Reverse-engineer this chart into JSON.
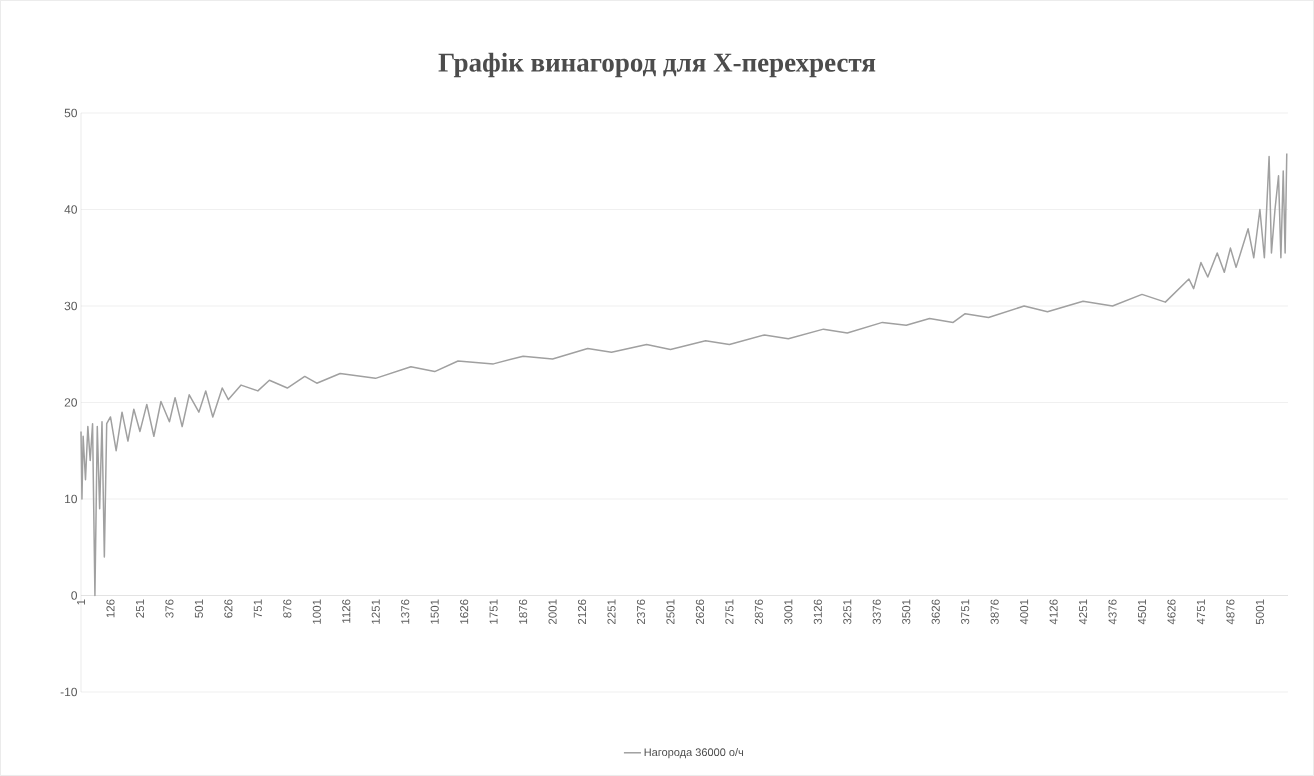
{
  "chart_data": {
    "type": "line",
    "title": "Графік винагород для Х-перехрестя",
    "x": [
      1,
      5,
      10,
      20,
      30,
      40,
      50,
      60,
      70,
      80,
      90,
      100,
      110,
      126,
      150,
      175,
      200,
      225,
      251,
      280,
      310,
      340,
      376,
      400,
      430,
      460,
      501,
      530,
      560,
      600,
      626,
      680,
      751,
      800,
      876,
      950,
      1001,
      1100,
      1250,
      1400,
      1501,
      1600,
      1750,
      1876,
      2001,
      2150,
      2251,
      2400,
      2501,
      2650,
      2751,
      2900,
      3001,
      3150,
      3251,
      3400,
      3501,
      3600,
      3700,
      3751,
      3850,
      4001,
      4100,
      4251,
      4376,
      4501,
      4600,
      4700,
      4720,
      4751,
      4780,
      4820,
      4850,
      4876,
      4900,
      4951,
      4975,
      5001,
      5020,
      5040,
      5050,
      5065,
      5080,
      5090,
      5100,
      5108,
      5115
    ],
    "series": [
      {
        "name": "Нагорода 36000 о/ч",
        "color": "#a0a0a0",
        "values": [
          17,
          10,
          16.5,
          12,
          17.5,
          14,
          17.8,
          0,
          17.5,
          9,
          18,
          4,
          17.8,
          18.5,
          15,
          19,
          16,
          19.3,
          17,
          19.8,
          16.5,
          20.1,
          18,
          20.5,
          17.5,
          20.8,
          19,
          21.2,
          18.5,
          21.5,
          20.3,
          21.8,
          21.2,
          22.3,
          21.5,
          22.7,
          22,
          23,
          22.5,
          23.7,
          23.2,
          24.3,
          24,
          24.8,
          24.5,
          25.6,
          25.2,
          26,
          25.5,
          26.4,
          26,
          27,
          26.6,
          27.6,
          27.2,
          28.3,
          28,
          28.7,
          28.3,
          29.2,
          28.8,
          30,
          29.4,
          30.5,
          30,
          31.2,
          30.4,
          32.8,
          31.8,
          34.5,
          33,
          35.5,
          33.5,
          36,
          34,
          38,
          35,
          40,
          35,
          45.5,
          35.5,
          40,
          43.5,
          35,
          44,
          35.5,
          45.8
        ]
      }
    ],
    "xlim": [
      1,
      5120
    ],
    "xticks": [
      1,
      126,
      251,
      376,
      501,
      626,
      751,
      876,
      1001,
      1126,
      1251,
      1376,
      1501,
      1626,
      1751,
      1876,
      2001,
      2126,
      2251,
      2376,
      2501,
      2626,
      2751,
      2876,
      3001,
      3126,
      3251,
      3376,
      3501,
      3626,
      3751,
      3876,
      4001,
      4126,
      4251,
      4376,
      4501,
      4626,
      4751,
      4876,
      5001
    ],
    "ylim": [
      -10,
      50
    ],
    "yticks": [
      -10,
      0,
      10,
      20,
      30,
      40,
      50
    ],
    "grid": "y",
    "legend": "bottom",
    "marker": "none",
    "line_style": "solid"
  }
}
